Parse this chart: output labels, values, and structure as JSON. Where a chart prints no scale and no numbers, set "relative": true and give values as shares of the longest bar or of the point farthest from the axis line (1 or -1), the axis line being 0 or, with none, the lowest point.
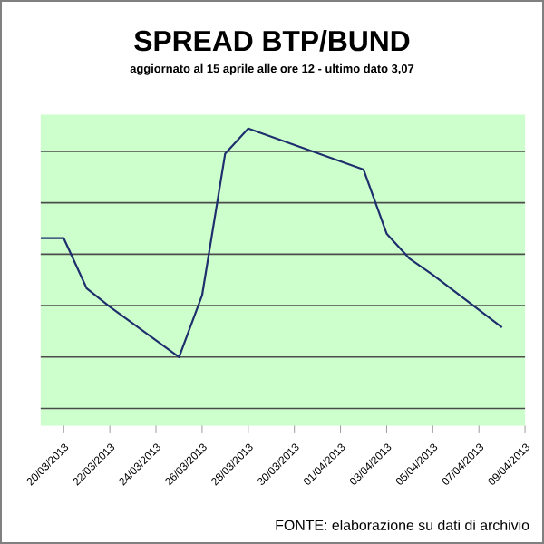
{
  "chart_data": {
    "type": "line",
    "title": "SPREAD  BTP/BUND",
    "subtitle": "aggiornato al 15 aprile alle ore 12 - ultimo dato 3,07",
    "annotations": [
      "FONTE: elaborazione su dati di archivio"
    ],
    "x": [
      "2013-03-19",
      "2013-03-20",
      "2013-03-21",
      "2013-03-22",
      "2013-03-25",
      "2013-03-26",
      "2013-03-27",
      "2013-03-28",
      "2013-04-02",
      "2013-04-03",
      "2013-04-04",
      "2013-04-05",
      "2013-04-08"
    ],
    "series": [
      {
        "color": "#1f2f6e",
        "values": [
          0.52,
          0.52,
          0.3,
          0.22,
          0,
          0.27,
          0.89,
          1,
          0.82,
          0.54,
          0.43,
          0.36,
          0.13
        ]
      }
    ],
    "relative": true,
    "grid": "y",
    "marker": "none",
    "line_style": "solid",
    "xlim": [
      "2013-03-19",
      "2013-04-09"
    ],
    "xticks": [
      {
        "value": "2013-03-20",
        "label": "20/03/2013"
      },
      {
        "value": "2013-03-22",
        "label": "22/03/2013"
      },
      {
        "value": "2013-03-24",
        "label": "24/03/2013"
      },
      {
        "value": "2013-03-26",
        "label": "26/03/2013"
      },
      {
        "value": "2013-03-28",
        "label": "28/03/2013"
      },
      {
        "value": "2013-03-30",
        "label": "30/03/2013"
      },
      {
        "value": "2013-04-01",
        "label": "01/04/2013"
      },
      {
        "value": "2013-04-03",
        "label": "03/04/2013"
      },
      {
        "value": "2013-04-05",
        "label": "05/04/2013"
      },
      {
        "value": "2013-04-07",
        "label": "07/04/2013"
      },
      {
        "value": "2013-04-09",
        "label": "09/04/2013"
      }
    ]
  }
}
